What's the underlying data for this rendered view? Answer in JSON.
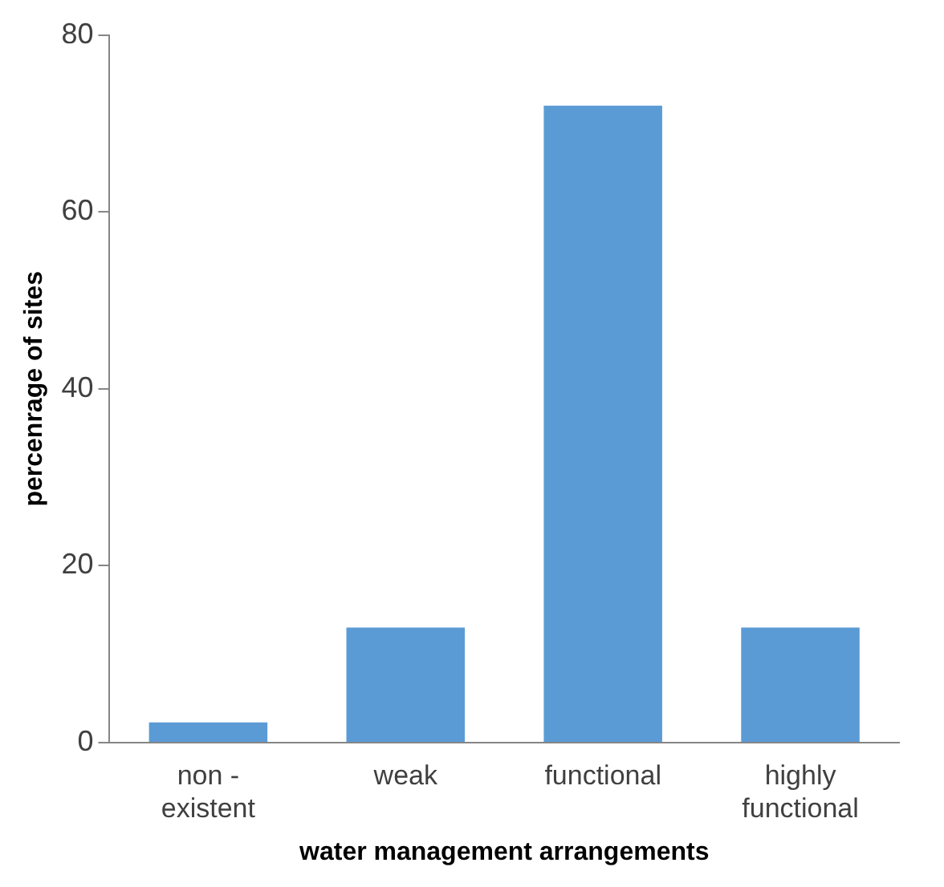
{
  "chart_data": {
    "type": "bar",
    "xlabel": "water management arrangements",
    "ylabel": "percenrage of sites",
    "categories": [
      "non - existent",
      "weak",
      "functional",
      "highly functional"
    ],
    "values": [
      2.3,
      13,
      72,
      13
    ],
    "color": "#5b9bd5",
    "ylim": [
      0,
      80
    ],
    "yticks": [
      0,
      20,
      40,
      60,
      80
    ],
    "grid": false,
    "legend": false
  }
}
